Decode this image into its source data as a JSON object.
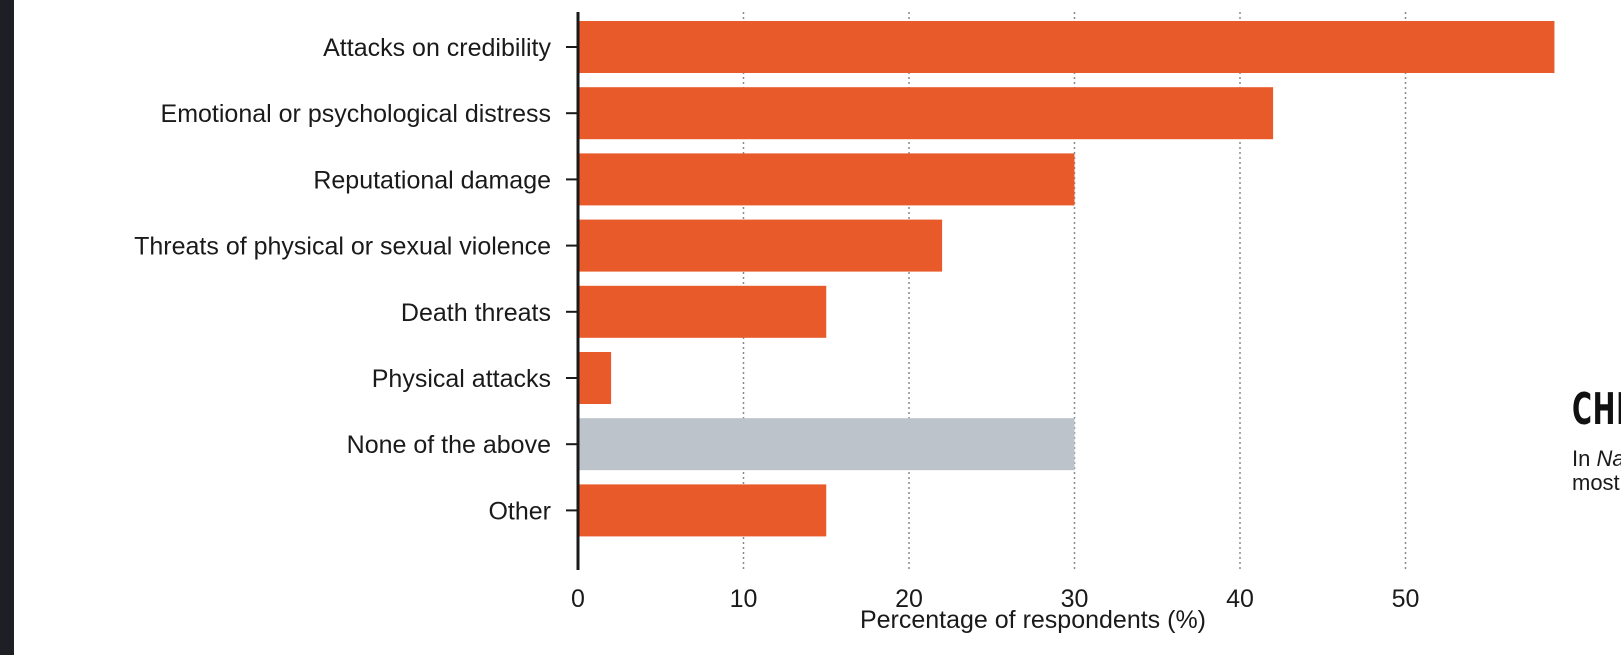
{
  "chart_data": {
    "type": "bar",
    "orientation": "horizontal",
    "categories": [
      "Attacks on credibility",
      "Emotional or psychological distress",
      "Reputational damage",
      "Threats of physical or sexual violence",
      "Death threats",
      "Physical attacks",
      "None of the above",
      "Other"
    ],
    "values": [
      59,
      42,
      30,
      22,
      15,
      2,
      30,
      15
    ],
    "bar_colors": [
      "#e85a2a",
      "#e85a2a",
      "#e85a2a",
      "#e85a2a",
      "#e85a2a",
      "#e85a2a",
      "#bcc3cb",
      "#e85a2a"
    ],
    "xlim": [
      0,
      59
    ],
    "xticks": [
      0,
      10,
      20,
      30,
      40,
      50
    ],
    "xlabel": "Percentage of respondents (%)",
    "grid": "vertical dotted",
    "legend": "none"
  },
  "side_text": {
    "title": "CHILL",
    "line1_prefix": "In ",
    "line1_italic": "Natur",
    "line2": "most lik"
  },
  "colors": {
    "accent_bar": "#e85a2a",
    "neutral_bar": "#bcc3cb",
    "page_edge": "#1c1f24"
  }
}
